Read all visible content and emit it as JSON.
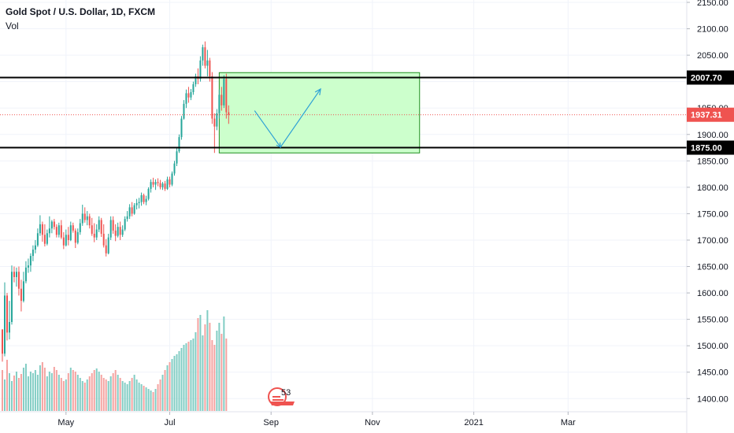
{
  "header": {
    "symbol_title": "Gold Spot / U.S. Dollar, 1D, FXCM",
    "volume_label": "Vol"
  },
  "colors": {
    "up": "#26a69a",
    "down": "#ef5350",
    "up_volume": "#82cdc4",
    "down_volume": "#f5a3a1",
    "zone_fill": "#ccffcc",
    "zone_border": "#1f8f1f",
    "level_line": "#000000",
    "current_price": "#ef5350",
    "projection": "#2ea1d5",
    "grid": "#f0f3fa",
    "axis_text": "#131722"
  },
  "chart_data": {
    "type": "candlestick",
    "title": "Gold Spot / U.S. Dollar, 1D, FXCM",
    "ylim": [
      1390,
      2150
    ],
    "y_ticks": [
      "2150.00",
      "2100.00",
      "2050.00",
      "2000.00",
      "1950.00",
      "1900.00",
      "1850.00",
      "1800.00",
      "1750.00",
      "1700.00",
      "1650.00",
      "1600.00",
      "1550.00",
      "1500.00",
      "1450.00",
      "1400.00"
    ],
    "x_ticks": [
      {
        "label": "May",
        "index": 27
      },
      {
        "label": "Jul",
        "index": 71
      },
      {
        "label": "Sep",
        "index": 114
      },
      {
        "label": "Nov",
        "index": 157
      },
      {
        "label": "2021",
        "index": 200
      },
      {
        "label": "Mar",
        "index": 240
      }
    ],
    "volume_indicator_label": "53",
    "horizontal_levels": [
      {
        "label": "2007.70",
        "value": 2007.7
      },
      {
        "label": "1875.00",
        "value": 1875.0
      }
    ],
    "current_price": {
      "label": "1937.31",
      "value": 1937.31
    },
    "zone": {
      "start_index": 92,
      "end_index": 177,
      "top": 2017,
      "bottom": 1865
    },
    "projection_path": [
      {
        "index": 107,
        "value": 1945
      },
      {
        "index": 118,
        "value": 1876
      },
      {
        "index": 135,
        "value": 1986
      }
    ],
    "candles_ohlc": [
      [
        1531,
        1531,
        1470,
        1485
      ],
      [
        1485,
        1620,
        1480,
        1595
      ],
      [
        1595,
        1600,
        1510,
        1525
      ],
      [
        1525,
        1585,
        1512,
        1545
      ],
      [
        1545,
        1652,
        1540,
        1640
      ],
      [
        1640,
        1650,
        1620,
        1630
      ],
      [
        1630,
        1648,
        1612,
        1640
      ],
      [
        1640,
        1650,
        1595,
        1608
      ],
      [
        1608,
        1625,
        1565,
        1585
      ],
      [
        1585,
        1640,
        1582,
        1622
      ],
      [
        1622,
        1660,
        1618,
        1648
      ],
      [
        1648,
        1665,
        1638,
        1652
      ],
      [
        1652,
        1675,
        1640,
        1670
      ],
      [
        1670,
        1690,
        1660,
        1682
      ],
      [
        1682,
        1700,
        1675,
        1690
      ],
      [
        1690,
        1722,
        1687,
        1713
      ],
      [
        1713,
        1747,
        1708,
        1730
      ],
      [
        1730,
        1735,
        1697,
        1710
      ],
      [
        1710,
        1730,
        1688,
        1693
      ],
      [
        1693,
        1720,
        1690,
        1713
      ],
      [
        1713,
        1745,
        1705,
        1722
      ],
      [
        1722,
        1738,
        1713,
        1735
      ],
      [
        1735,
        1740,
        1720,
        1725
      ],
      [
        1725,
        1730,
        1705,
        1710
      ],
      [
        1710,
        1733,
        1705,
        1728
      ],
      [
        1728,
        1738,
        1702,
        1705
      ],
      [
        1705,
        1715,
        1683,
        1690
      ],
      [
        1690,
        1720,
        1688,
        1710
      ],
      [
        1710,
        1725,
        1690,
        1700
      ],
      [
        1700,
        1735,
        1698,
        1728
      ],
      [
        1728,
        1733,
        1714,
        1718
      ],
      [
        1718,
        1722,
        1685,
        1695
      ],
      [
        1695,
        1722,
        1692,
        1715
      ],
      [
        1715,
        1740,
        1710,
        1732
      ],
      [
        1732,
        1767,
        1727,
        1750
      ],
      [
        1750,
        1762,
        1733,
        1738
      ],
      [
        1738,
        1755,
        1728,
        1745
      ],
      [
        1745,
        1750,
        1722,
        1728
      ],
      [
        1728,
        1742,
        1708,
        1712
      ],
      [
        1712,
        1732,
        1696,
        1705
      ],
      [
        1705,
        1730,
        1700,
        1720
      ],
      [
        1720,
        1745,
        1715,
        1738
      ],
      [
        1738,
        1742,
        1706,
        1712
      ],
      [
        1712,
        1730,
        1686,
        1690
      ],
      [
        1690,
        1702,
        1669,
        1675
      ],
      [
        1675,
        1712,
        1673,
        1705
      ],
      [
        1705,
        1745,
        1700,
        1738
      ],
      [
        1738,
        1745,
        1712,
        1718
      ],
      [
        1718,
        1730,
        1698,
        1708
      ],
      [
        1708,
        1733,
        1705,
        1725
      ],
      [
        1725,
        1735,
        1700,
        1710
      ],
      [
        1710,
        1728,
        1706,
        1720
      ],
      [
        1720,
        1745,
        1717,
        1740
      ],
      [
        1740,
        1755,
        1735,
        1745
      ],
      [
        1745,
        1768,
        1740,
        1762
      ],
      [
        1762,
        1772,
        1745,
        1750
      ],
      [
        1750,
        1770,
        1748,
        1766
      ],
      [
        1766,
        1778,
        1758,
        1770
      ],
      [
        1770,
        1780,
        1760,
        1772
      ],
      [
        1772,
        1790,
        1765,
        1785
      ],
      [
        1785,
        1788,
        1768,
        1772
      ],
      [
        1772,
        1784,
        1766,
        1778
      ],
      [
        1778,
        1800,
        1775,
        1797
      ],
      [
        1797,
        1815,
        1790,
        1810
      ],
      [
        1810,
        1818,
        1800,
        1805
      ],
      [
        1805,
        1815,
        1795,
        1810
      ],
      [
        1810,
        1817,
        1802,
        1808
      ],
      [
        1808,
        1814,
        1796,
        1800
      ],
      [
        1800,
        1810,
        1795,
        1807
      ],
      [
        1807,
        1812,
        1793,
        1797
      ],
      [
        1797,
        1820,
        1795,
        1815
      ],
      [
        1815,
        1820,
        1800,
        1805
      ],
      [
        1805,
        1830,
        1802,
        1826
      ],
      [
        1826,
        1850,
        1822,
        1845
      ],
      [
        1845,
        1875,
        1840,
        1868
      ],
      [
        1868,
        1900,
        1865,
        1895
      ],
      [
        1895,
        1935,
        1890,
        1930
      ],
      [
        1930,
        1965,
        1928,
        1958
      ],
      [
        1958,
        1985,
        1950,
        1978
      ],
      [
        1978,
        1990,
        1960,
        1970
      ],
      [
        1970,
        1986,
        1965,
        1980
      ],
      [
        1980,
        2000,
        1975,
        1995
      ],
      [
        1995,
        2015,
        1990,
        2010
      ],
      [
        2010,
        2025,
        1995,
        2005
      ],
      [
        2005,
        2048,
        2000,
        2040
      ],
      [
        2040,
        2070,
        2030,
        2065
      ],
      [
        2065,
        2076,
        2025,
        2030
      ],
      [
        2030,
        2060,
        2010,
        2040
      ],
      [
        2040,
        2045,
        2000,
        2010
      ],
      [
        2010,
        2018,
        1920,
        1930
      ],
      [
        1930,
        1940,
        1865,
        1915
      ],
      [
        1915,
        1948,
        1908,
        1940
      ],
      [
        1940,
        1985,
        1930,
        1975
      ],
      [
        1975,
        1990,
        1945,
        1955
      ],
      [
        1955,
        2012,
        1950,
        2005
      ],
      [
        2005,
        2015,
        1930,
        1942
      ],
      [
        1942,
        1955,
        1920,
        1937
      ]
    ],
    "volumes": [
      52,
      40,
      65,
      48,
      38,
      45,
      50,
      42,
      47,
      55,
      60,
      44,
      50,
      48,
      52,
      46,
      58,
      62,
      55,
      44,
      50,
      48,
      56,
      52,
      46,
      42,
      38,
      40,
      48,
      55,
      52,
      50,
      46,
      42,
      38,
      36,
      40,
      44,
      48,
      52,
      54,
      50,
      46,
      42,
      40,
      38,
      44,
      48,
      52,
      46,
      42,
      38,
      36,
      34,
      38,
      42,
      46,
      40,
      36,
      34,
      32,
      30,
      28,
      26,
      24,
      28,
      34,
      40,
      46,
      52,
      58,
      62,
      66,
      70,
      72,
      76,
      80,
      84,
      86,
      88,
      90,
      92,
      100,
      118,
      122,
      96,
      110,
      128,
      112,
      90,
      84,
      102,
      112,
      98,
      120,
      92
    ]
  }
}
